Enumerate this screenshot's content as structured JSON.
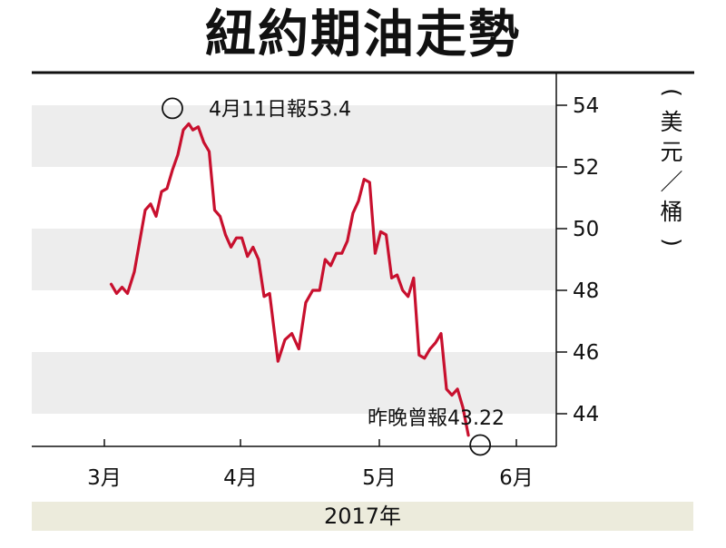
{
  "title": "紐約期油走勢",
  "year_label": "2017年",
  "chart_data": {
    "type": "line",
    "title": "紐約期油走勢",
    "ylabel": "美元／桶",
    "ylim": [
      43,
      55
    ],
    "yticks": [
      44,
      46,
      48,
      50,
      52,
      54
    ],
    "grid": "alternating horizontal bands",
    "xticks": [
      "3月",
      "4月",
      "5月",
      "6月"
    ],
    "xaxis_title": "2017年",
    "series": [
      {
        "color": "#c8102e",
        "points": [
          [
            0.05,
            48.2
          ],
          [
            0.09,
            47.9
          ],
          [
            0.13,
            48.1
          ],
          [
            0.17,
            47.9
          ],
          [
            0.22,
            48.6
          ],
          [
            0.26,
            49.6
          ],
          [
            0.3,
            50.6
          ],
          [
            0.34,
            50.8
          ],
          [
            0.38,
            50.4
          ],
          [
            0.42,
            51.2
          ],
          [
            0.46,
            51.3
          ],
          [
            0.5,
            51.9
          ],
          [
            0.54,
            52.4
          ],
          [
            0.58,
            53.2
          ],
          [
            0.62,
            53.4
          ],
          [
            0.65,
            53.2
          ],
          [
            0.69,
            53.3
          ],
          [
            0.73,
            52.8
          ],
          [
            0.77,
            52.5
          ],
          [
            0.81,
            50.6
          ],
          [
            0.85,
            50.4
          ],
          [
            0.89,
            49.8
          ],
          [
            0.93,
            49.4
          ],
          [
            0.97,
            49.7
          ],
          [
            1.01,
            49.7
          ],
          [
            1.05,
            49.1
          ],
          [
            1.09,
            49.4
          ],
          [
            1.13,
            49.0
          ],
          [
            1.17,
            47.8
          ],
          [
            1.21,
            47.9
          ],
          [
            1.27,
            45.7
          ],
          [
            1.32,
            46.4
          ],
          [
            1.37,
            46.6
          ],
          [
            1.42,
            46.1
          ],
          [
            1.47,
            47.6
          ],
          [
            1.52,
            48.0
          ],
          [
            1.57,
            48.0
          ],
          [
            1.61,
            49.0
          ],
          [
            1.65,
            48.8
          ],
          [
            1.69,
            49.2
          ],
          [
            1.73,
            49.2
          ],
          [
            1.77,
            49.6
          ],
          [
            1.81,
            50.5
          ],
          [
            1.85,
            50.9
          ],
          [
            1.89,
            51.6
          ],
          [
            1.93,
            51.5
          ],
          [
            1.97,
            49.2
          ],
          [
            2.01,
            49.9
          ],
          [
            2.05,
            49.8
          ],
          [
            2.09,
            48.4
          ],
          [
            2.13,
            48.5
          ],
          [
            2.17,
            48.0
          ],
          [
            2.21,
            47.8
          ],
          [
            2.25,
            48.4
          ],
          [
            2.29,
            45.9
          ],
          [
            2.33,
            45.8
          ],
          [
            2.37,
            46.1
          ],
          [
            2.41,
            46.3
          ],
          [
            2.45,
            46.6
          ],
          [
            2.49,
            44.8
          ],
          [
            2.53,
            44.6
          ],
          [
            2.57,
            44.8
          ],
          [
            2.61,
            44.2
          ],
          [
            2.65,
            43.3
          ]
        ]
      }
    ],
    "annotations": [
      {
        "text": "4月11日報53.4",
        "x": 0.58,
        "y": 53.4,
        "marker": "circle"
      },
      {
        "text": "昨晚曾報43.22",
        "x": 2.65,
        "y": 43.22,
        "marker": "circle"
      }
    ]
  }
}
